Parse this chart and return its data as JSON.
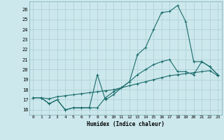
{
  "xlabel": "Humidex (Indice chaleur)",
  "background_color": "#cce8ec",
  "grid_color": "#aacdd4",
  "line_color": "#1a6b6b",
  "x_ticks": [
    0,
    1,
    2,
    3,
    4,
    5,
    6,
    7,
    8,
    9,
    10,
    11,
    12,
    13,
    14,
    15,
    16,
    17,
    18,
    19,
    20,
    21,
    22,
    23
  ],
  "y_ticks": [
    16,
    17,
    18,
    19,
    20,
    21,
    22,
    23,
    24,
    25,
    26
  ],
  "xlim": [
    -0.5,
    23.5
  ],
  "ylim": [
    15.5,
    26.8
  ],
  "series": [
    [
      17.2,
      17.2,
      16.6,
      17.0,
      16.0,
      16.2,
      16.2,
      16.2,
      19.5,
      17.0,
      17.5,
      18.2,
      18.8,
      21.5,
      22.2,
      24.0,
      25.7,
      25.8,
      26.4,
      24.8,
      20.8,
      20.8,
      20.3,
      19.5
    ],
    [
      17.2,
      17.2,
      16.6,
      17.0,
      16.0,
      16.2,
      16.2,
      16.2,
      16.2,
      17.2,
      17.8,
      18.2,
      18.8,
      19.5,
      20.0,
      20.5,
      20.8,
      21.0,
      19.8,
      19.8,
      19.5,
      20.8,
      20.3,
      19.5
    ],
    [
      17.2,
      17.2,
      17.1,
      17.3,
      17.4,
      17.5,
      17.6,
      17.7,
      17.8,
      17.9,
      18.0,
      18.2,
      18.4,
      18.6,
      18.8,
      19.0,
      19.2,
      19.4,
      19.5,
      19.6,
      19.7,
      19.8,
      19.9,
      19.4
    ]
  ]
}
